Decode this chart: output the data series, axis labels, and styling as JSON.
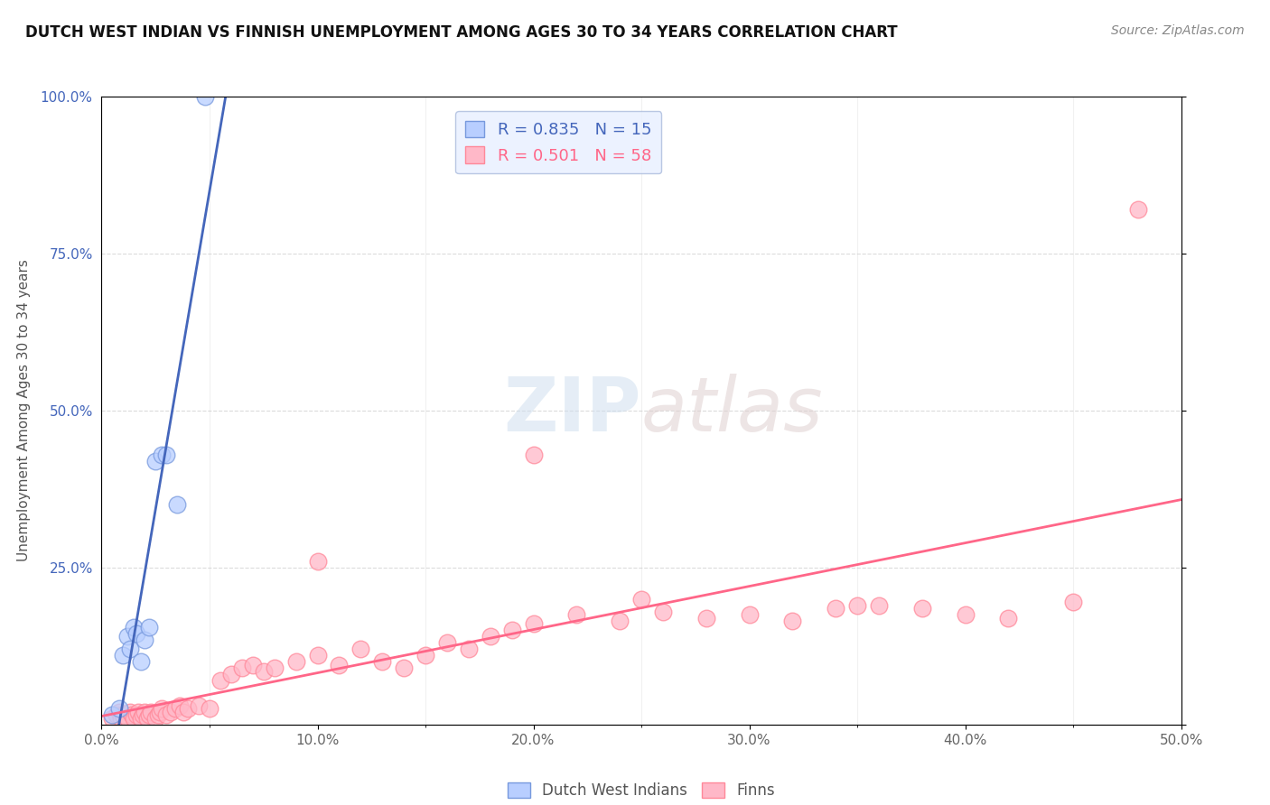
{
  "title": "DUTCH WEST INDIAN VS FINNISH UNEMPLOYMENT AMONG AGES 30 TO 34 YEARS CORRELATION CHART",
  "source": "Source: ZipAtlas.com",
  "ylabel": "Unemployment Among Ages 30 to 34 years",
  "xlim": [
    0.0,
    0.5
  ],
  "ylim": [
    0.0,
    1.0
  ],
  "blue_R": 0.835,
  "blue_N": 15,
  "pink_R": 0.501,
  "pink_N": 58,
  "blue_marker_face": "#B8CEFF",
  "blue_marker_edge": "#7799DD",
  "pink_marker_face": "#FFB8C8",
  "pink_marker_edge": "#FF8899",
  "blue_line_color": "#4466BB",
  "pink_line_color": "#FF6688",
  "watermark_zip": "ZIP",
  "watermark_atlas": "atlas",
  "legend_facecolor": "#E8EFFF",
  "legend_edgecolor": "#AABBDD",
  "dutch_west_indian_x": [
    0.005,
    0.008,
    0.01,
    0.012,
    0.013,
    0.015,
    0.016,
    0.018,
    0.02,
    0.022,
    0.025,
    0.028,
    0.03,
    0.035,
    0.048
  ],
  "dutch_west_indian_y": [
    0.015,
    0.025,
    0.11,
    0.14,
    0.12,
    0.155,
    0.145,
    0.1,
    0.135,
    0.155,
    0.42,
    0.43,
    0.43,
    0.35,
    1.0
  ],
  "finns_x": [
    0.005,
    0.007,
    0.008,
    0.009,
    0.01,
    0.012,
    0.013,
    0.014,
    0.015,
    0.016,
    0.017,
    0.018,
    0.019,
    0.02,
    0.021,
    0.022,
    0.023,
    0.025,
    0.026,
    0.027,
    0.028,
    0.03,
    0.032,
    0.034,
    0.036,
    0.038,
    0.04,
    0.045,
    0.05,
    0.055,
    0.06,
    0.065,
    0.07,
    0.075,
    0.08,
    0.09,
    0.1,
    0.11,
    0.12,
    0.13,
    0.14,
    0.15,
    0.16,
    0.17,
    0.18,
    0.19,
    0.2,
    0.22,
    0.24,
    0.26,
    0.28,
    0.3,
    0.32,
    0.34,
    0.36,
    0.38,
    0.4,
    0.45
  ],
  "finns_y": [
    0.01,
    0.015,
    0.02,
    0.01,
    0.015,
    0.01,
    0.02,
    0.015,
    0.01,
    0.015,
    0.02,
    0.01,
    0.015,
    0.02,
    0.01,
    0.015,
    0.02,
    0.01,
    0.015,
    0.02,
    0.025,
    0.015,
    0.02,
    0.025,
    0.03,
    0.02,
    0.025,
    0.03,
    0.025,
    0.07,
    0.08,
    0.09,
    0.095,
    0.085,
    0.09,
    0.1,
    0.11,
    0.095,
    0.12,
    0.1,
    0.09,
    0.11,
    0.13,
    0.12,
    0.14,
    0.15,
    0.16,
    0.175,
    0.165,
    0.18,
    0.17,
    0.175,
    0.165,
    0.185,
    0.19,
    0.185,
    0.175,
    0.195
  ],
  "finns_extra_x": [
    0.2,
    0.25,
    0.1,
    0.35,
    0.42,
    0.48
  ],
  "finns_extra_y": [
    0.43,
    0.2,
    0.26,
    0.19,
    0.17,
    0.82
  ]
}
